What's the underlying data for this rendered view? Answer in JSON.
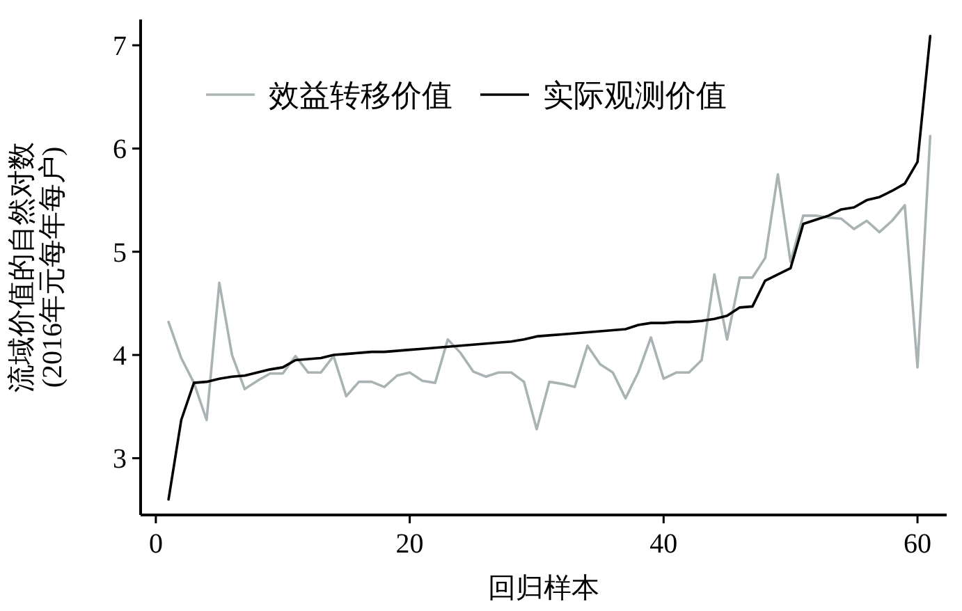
{
  "chart_data": {
    "type": "line",
    "xlabel": "回归样本",
    "ylabel": "流域价值的自然对数\n(2016年元每年每户)",
    "x": [
      1,
      2,
      3,
      4,
      5,
      6,
      7,
      8,
      9,
      10,
      11,
      12,
      13,
      14,
      15,
      16,
      17,
      18,
      19,
      20,
      21,
      22,
      23,
      24,
      25,
      26,
      27,
      28,
      29,
      30,
      31,
      32,
      33,
      34,
      35,
      36,
      37,
      38,
      39,
      40,
      41,
      42,
      43,
      44,
      45,
      46,
      47,
      48,
      49,
      50,
      51,
      52,
      53,
      54,
      55,
      56,
      57,
      58,
      59,
      60,
      61
    ],
    "series": [
      {
        "name": "效益转移价值",
        "color": "#a9b3b3",
        "values": [
          4.32,
          3.97,
          3.73,
          3.37,
          4.7,
          4.0,
          3.67,
          3.75,
          3.82,
          3.82,
          3.99,
          3.83,
          3.83,
          3.99,
          3.6,
          3.74,
          3.74,
          3.69,
          3.8,
          3.83,
          3.75,
          3.73,
          4.15,
          4.02,
          3.84,
          3.79,
          3.83,
          3.83,
          3.74,
          3.28,
          3.74,
          3.72,
          3.69,
          4.09,
          3.91,
          3.83,
          3.58,
          3.83,
          4.17,
          3.77,
          3.83,
          3.83,
          3.95,
          4.78,
          4.15,
          4.75,
          4.75,
          4.94,
          5.75,
          4.9,
          5.35,
          5.35,
          5.33,
          5.32,
          5.22,
          5.3,
          5.19,
          5.3,
          5.45,
          3.88,
          6.12
        ]
      },
      {
        "name": "实际观测价值",
        "color": "#000000",
        "values": [
          2.6,
          3.37,
          3.73,
          3.74,
          3.77,
          3.79,
          3.8,
          3.83,
          3.86,
          3.88,
          3.95,
          3.96,
          3.97,
          4.0,
          4.01,
          4.02,
          4.03,
          4.03,
          4.04,
          4.05,
          4.06,
          4.07,
          4.08,
          4.09,
          4.1,
          4.11,
          4.12,
          4.13,
          4.15,
          4.18,
          4.19,
          4.2,
          4.21,
          4.22,
          4.23,
          4.24,
          4.25,
          4.29,
          4.31,
          4.31,
          4.32,
          4.32,
          4.33,
          4.35,
          4.38,
          4.46,
          4.47,
          4.72,
          4.78,
          4.84,
          5.27,
          5.31,
          5.35,
          5.41,
          5.43,
          5.5,
          5.53,
          5.59,
          5.66,
          5.87,
          7.09
        ]
      }
    ],
    "xlim": [
      -1.2,
      62.3
    ],
    "xticks": [
      0,
      20,
      40,
      60
    ],
    "ylim": [
      2.45,
      7.25
    ],
    "yticks": [
      3,
      4,
      5,
      6,
      7
    ],
    "legend": "top",
    "marker": "none",
    "line_style": "solid"
  }
}
